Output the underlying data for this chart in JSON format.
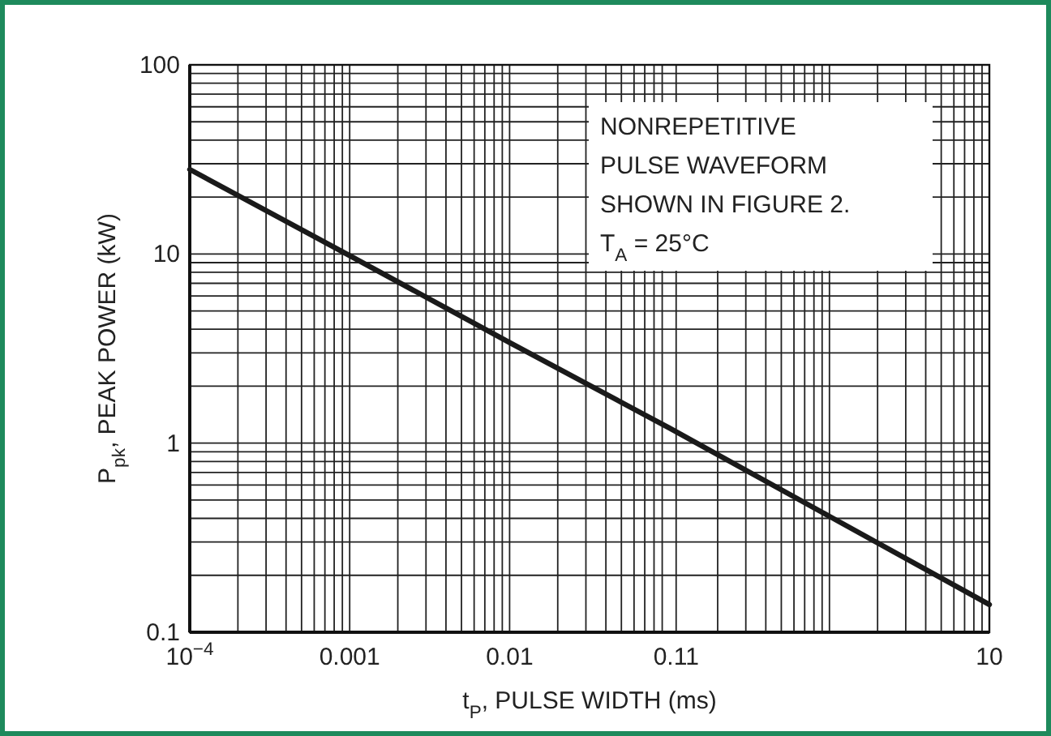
{
  "chart_data": {
    "type": "line",
    "xlabel": "t$_{P}$, PULSE WIDTH (ms)",
    "ylabel": "P$_{pk}$, PEAK POWER (kW)",
    "log": "xy",
    "grid": true,
    "marker": "none",
    "line_style": "solid",
    "annotations": [
      "NONREPETITIVE\nPULSE WAVEFORM\nSHOWN IN FIGURE 2.\nT$_{A}$ = 25°C"
    ],
    "xlim": [
      0.0001,
      10
    ],
    "ylim": [
      0.1,
      100
    ],
    "xticks": [
      {
        "value": 0.0001,
        "label": "10$^{−4}$"
      },
      {
        "value": 0.0002,
        "label": null
      },
      {
        "value": 0.0003,
        "label": null
      },
      {
        "value": 0.0004,
        "label": null
      },
      {
        "value": 0.0005,
        "label": null
      },
      {
        "value": 0.0006,
        "label": null
      },
      {
        "value": 0.0007,
        "label": null
      },
      {
        "value": 0.0008,
        "label": null
      },
      {
        "value": 0.0009,
        "label": null
      },
      0.001,
      {
        "value": 0.002,
        "label": null
      },
      {
        "value": 0.003,
        "label": null
      },
      {
        "value": 0.004,
        "label": null
      },
      {
        "value": 0.005,
        "label": null
      },
      {
        "value": 0.006,
        "label": null
      },
      {
        "value": 0.007,
        "label": null
      },
      {
        "value": 0.008,
        "label": null
      },
      {
        "value": 0.009,
        "label": null
      },
      0.01,
      {
        "value": 0.02,
        "label": null
      },
      {
        "value": 0.03,
        "label": null
      },
      {
        "value": 0.04,
        "label": null
      },
      {
        "value": 0.05,
        "label": null
      },
      {
        "value": 0.06,
        "label": null
      },
      {
        "value": 0.07,
        "label": null
      },
      {
        "value": 0.08,
        "label": null
      },
      {
        "value": 0.09,
        "label": null
      },
      0.11,
      {
        "value": 0.2,
        "label": null
      },
      {
        "value": 0.3,
        "label": null
      },
      {
        "value": 0.4,
        "label": null
      },
      {
        "value": 0.5,
        "label": null
      },
      {
        "value": 0.6,
        "label": null
      },
      {
        "value": 0.7,
        "label": null
      },
      {
        "value": 0.8,
        "label": null
      },
      {
        "value": 0.9,
        "label": null
      },
      {
        "value": 1,
        "label": null
      },
      {
        "value": 2,
        "label": null
      },
      {
        "value": 3,
        "label": null
      },
      {
        "value": 4,
        "label": null
      },
      {
        "value": 5,
        "label": null
      },
      {
        "value": 6,
        "label": null
      },
      {
        "value": 7,
        "label": null
      },
      {
        "value": 8,
        "label": null
      },
      {
        "value": 9,
        "label": null
      },
      10
    ],
    "yticks": [
      0.1,
      {
        "value": 0.2,
        "label": null
      },
      {
        "value": 0.3,
        "label": null
      },
      {
        "value": 0.4,
        "label": null
      },
      {
        "value": 0.5,
        "label": null
      },
      {
        "value": 0.6,
        "label": null
      },
      {
        "value": 0.7,
        "label": null
      },
      {
        "value": 0.8,
        "label": null
      },
      {
        "value": 0.9,
        "label": null
      },
      1,
      {
        "value": 2,
        "label": null
      },
      {
        "value": 3,
        "label": null
      },
      {
        "value": 4,
        "label": null
      },
      {
        "value": 5,
        "label": null
      },
      {
        "value": 6,
        "label": null
      },
      {
        "value": 7,
        "label": null
      },
      {
        "value": 8,
        "label": null
      },
      {
        "value": 9,
        "label": null
      },
      10,
      {
        "value": 20,
        "label": null
      },
      {
        "value": 30,
        "label": null
      },
      {
        "value": 40,
        "label": null
      },
      {
        "value": 50,
        "label": null
      },
      {
        "value": 60,
        "label": null
      },
      {
        "value": 70,
        "label": null
      },
      {
        "value": 80,
        "label": null
      },
      {
        "value": 90,
        "label": null
      },
      100
    ],
    "series": [
      {
        "color": "#1a1a1a",
        "x": [
          0.0001,
          0.001,
          0.01,
          0.1,
          1,
          10
        ],
        "values": [
          28,
          9.8,
          3.4,
          1.2,
          0.41,
          0.14
        ]
      }
    ]
  }
}
